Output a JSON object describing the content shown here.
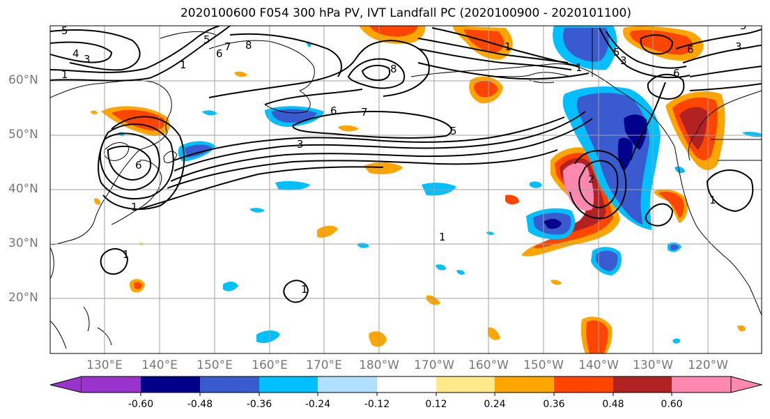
{
  "title": "2020100600 F054 300 hPa PV, IVT Landfall PC (2020100900 - 2020101100)",
  "map": {
    "lat_labels": [
      "60°N",
      "50°N",
      "40°N",
      "30°N",
      "20°N"
    ],
    "lon_labels": [
      "130°E",
      "140°E",
      "150°E",
      "160°E",
      "170°E",
      "180°W",
      "170°W",
      "160°W",
      "150°W",
      "140°W",
      "130°W",
      "120°W"
    ],
    "ocean_color": "#ffffff",
    "grid_color": "#a0a0a0"
  },
  "contour_labels": [
    "5",
    "4",
    "3",
    "1",
    "5",
    "6",
    "7",
    "8",
    "8",
    "7",
    "6",
    "5",
    "3",
    "1",
    "6",
    "5",
    "3",
    "6",
    "1",
    "5",
    "6",
    "1",
    "3",
    "2",
    "1",
    "1",
    "1",
    "1",
    "1"
  ],
  "colorbar": {
    "labels": [
      "-0.60",
      "-0.48",
      "-0.36",
      "-0.24",
      "-0.12",
      "0.12",
      "0.24",
      "0.36",
      "0.48",
      "0.60"
    ],
    "colors": [
      "#9933cc",
      "#00008b",
      "#3a5bcf",
      "#00bfff",
      "#b0e0ff",
      "#ffffff",
      "#ffe98a",
      "#ffa500",
      "#ff4500",
      "#b22222",
      "#ff88b0"
    ]
  }
}
